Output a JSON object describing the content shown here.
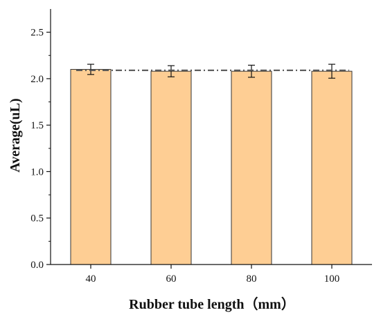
{
  "chart_data": {
    "type": "bar",
    "categories": [
      "40",
      "60",
      "80",
      "100"
    ],
    "values": [
      2.1,
      2.08,
      2.08,
      2.08
    ],
    "errors": [
      0.055,
      0.06,
      0.065,
      0.075
    ],
    "reference_line": 2.09,
    "xlabel": "Rubber tube length（mm）",
    "ylabel": "Average(uL)",
    "ylim": [
      0,
      2.75
    ],
    "yticks": [
      "0.0",
      "0.5",
      "1.0",
      "1.5",
      "2.0",
      "2.5"
    ],
    "colors": {
      "bar_fill": "#FECE94",
      "bar_stroke": "#333333",
      "axis": "#111111",
      "error_bar": "#111111",
      "reference_line": "#555555"
    },
    "grid": false,
    "legend": "none"
  }
}
